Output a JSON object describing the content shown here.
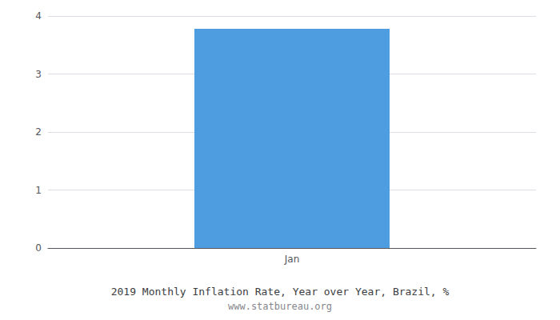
{
  "chart_data": {
    "type": "bar",
    "title": "2019 Monthly Inflation Rate, Year over Year, Brazil, %",
    "subtitle": "www.statbureau.org",
    "categories": [
      "Jan"
    ],
    "values": [
      3.78
    ],
    "color": "#4d9de0",
    "ylim": [
      0,
      4
    ],
    "yticks": [
      0,
      1,
      2,
      3,
      4
    ],
    "grid": true
  }
}
